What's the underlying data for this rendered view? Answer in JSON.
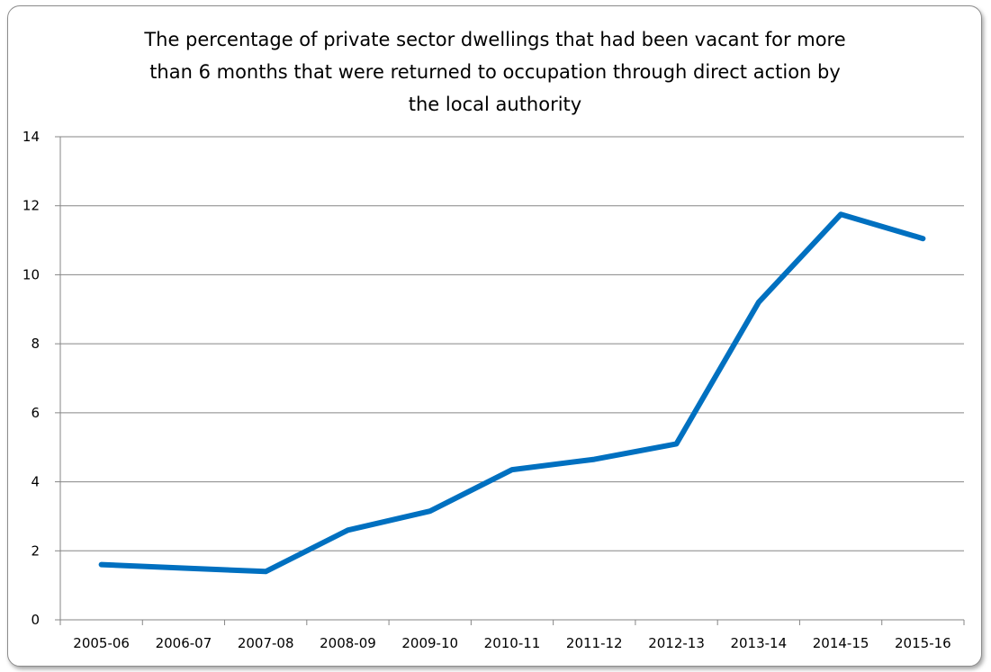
{
  "chart_data": {
    "type": "line",
    "title_lines": [
      "The percentage of private sector dwellings that had been vacant for more",
      "than 6 months that were returned to occupation through direct action by",
      "the local authority"
    ],
    "categories": [
      "2005-06",
      "2006-07",
      "2007-08",
      "2008-09",
      "2009-10",
      "2010-11",
      "2011-12",
      "2012-13",
      "2013-14",
      "2014-15",
      "2015-16"
    ],
    "series": [
      {
        "values": [
          1.6,
          1.5,
          1.4,
          2.6,
          3.15,
          4.35,
          4.65,
          5.1,
          9.2,
          11.75,
          11.05
        ],
        "color": "#0070C0"
      }
    ],
    "ylim": [
      0,
      14
    ],
    "yticks": [
      0,
      2,
      4,
      6,
      8,
      10,
      12,
      14
    ],
    "grid": true,
    "legend": "none"
  }
}
